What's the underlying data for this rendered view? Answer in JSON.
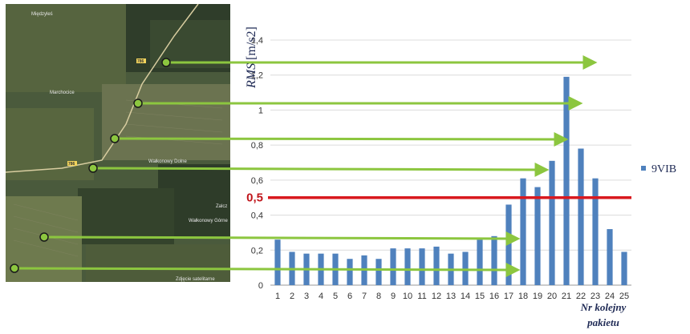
{
  "map": {
    "labels": [
      "Międzyleś",
      "Marchocice",
      "Wałkonowy Dolne",
      "Zalcz",
      "Wałkonowy Górne",
      "Zdjęcie satelitarne"
    ],
    "road_number": "786"
  },
  "chart_data": {
    "type": "bar",
    "title": "",
    "ylabel_italic": "RMS",
    "ylabel_unit": " [m/s2]",
    "xlabel": [
      "Nr kolejny",
      "pakietu"
    ],
    "categories": [
      "1",
      "2",
      "3",
      "4",
      "5",
      "6",
      "7",
      "8",
      "9",
      "10",
      "11",
      "12",
      "13",
      "14",
      "15",
      "16",
      "17",
      "18",
      "19",
      "20",
      "21",
      "22",
      "23",
      "24",
      "25"
    ],
    "series": [
      {
        "name": "9VIB",
        "values": [
          0.26,
          0.19,
          0.18,
          0.18,
          0.18,
          0.15,
          0.17,
          0.15,
          0.21,
          0.21,
          0.21,
          0.22,
          0.18,
          0.19,
          0.26,
          0.28,
          0.46,
          0.61,
          0.56,
          0.71,
          1.19,
          0.78,
          0.61,
          0.32,
          0.19
        ]
      }
    ],
    "ylim": [
      0,
      1.4
    ],
    "yticks": [
      "0",
      "0,2",
      "0,4",
      "0,6",
      "0,8",
      "1",
      "1,2",
      "1,4"
    ],
    "threshold": {
      "value": 0.5,
      "label": "0,5",
      "color": "#d9191f"
    },
    "grid": true,
    "legend": "right",
    "bar_color": "#4f81bd",
    "arrow_color": "#8cc63f",
    "arrows": [
      {
        "to_bar": 23
      },
      {
        "to_bar": 22
      },
      {
        "to_bar": 21
      },
      {
        "to_bar": 20
      },
      {
        "to_bar": 18
      },
      {
        "to_bar": 18
      }
    ]
  }
}
